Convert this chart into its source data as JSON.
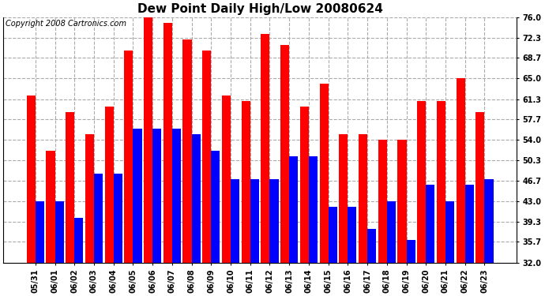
{
  "title": "Dew Point Daily High/Low 20080624",
  "copyright": "Copyright 2008 Cartronics.com",
  "categories": [
    "05/31",
    "06/01",
    "06/02",
    "06/03",
    "06/04",
    "06/05",
    "06/06",
    "06/07",
    "06/08",
    "06/09",
    "06/10",
    "06/11",
    "06/12",
    "06/13",
    "06/14",
    "06/15",
    "06/16",
    "06/17",
    "06/18",
    "06/19",
    "06/20",
    "06/21",
    "06/22",
    "06/23"
  ],
  "highs": [
    62,
    52,
    59,
    55,
    60,
    70,
    76,
    75,
    72,
    70,
    62,
    61,
    73,
    71,
    60,
    64,
    55,
    55,
    54,
    54,
    61,
    61,
    65,
    59
  ],
  "lows": [
    43,
    43,
    40,
    48,
    48,
    56,
    56,
    56,
    55,
    52,
    47,
    47,
    47,
    51,
    51,
    42,
    42,
    38,
    43,
    36,
    46,
    43,
    46,
    47
  ],
  "high_color": "#ff0000",
  "low_color": "#0000ff",
  "background_color": "#ffffff",
  "grid_color": "#aaaaaa",
  "ylim": [
    32.0,
    76.0
  ],
  "yticks": [
    32.0,
    35.7,
    39.3,
    43.0,
    46.7,
    50.3,
    54.0,
    57.7,
    61.3,
    65.0,
    68.7,
    72.3,
    76.0
  ],
  "bar_width": 0.45,
  "title_fontsize": 11,
  "tick_fontsize": 7,
  "copyright_fontsize": 7
}
